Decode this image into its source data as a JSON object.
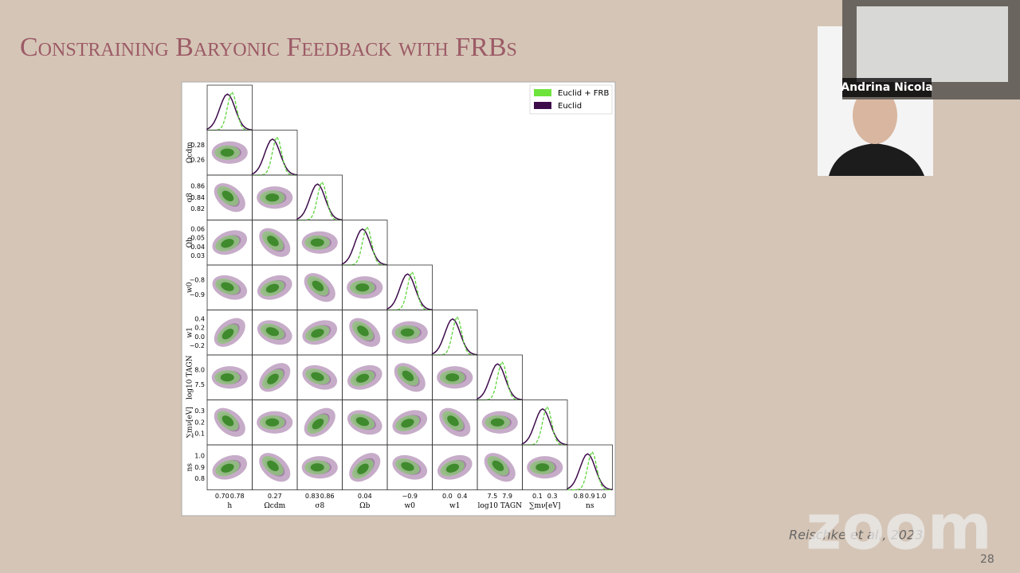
{
  "slide": {
    "title": "Constraining Baryonic Feedback with FRBs",
    "citation": "Reischke et al., 2023",
    "page": "28"
  },
  "figure": {
    "legend": [
      "Euclid + FRB",
      "Euclid"
    ],
    "columns": [
      {
        "label": "h",
        "ticks": [
          "0.70",
          "0.78"
        ]
      },
      {
        "label": "Ωcdm",
        "ticks": [
          "0.27"
        ]
      },
      {
        "label": "σ8",
        "ticks": [
          "0.83",
          "0.86"
        ]
      },
      {
        "label": "Ωb",
        "ticks": [
          "0.04"
        ]
      },
      {
        "label": "w0",
        "ticks": [
          "−0.9"
        ]
      },
      {
        "label": "w1",
        "ticks": [
          "0.0",
          "0.4"
        ]
      },
      {
        "label": "log10 TAGN",
        "ticks": [
          "7.5",
          "7.9"
        ]
      },
      {
        "label": "∑mν[eV]",
        "ticks": [
          "0.1",
          "0.3"
        ]
      },
      {
        "label": "ns",
        "ticks": [
          "0.8",
          "0.9",
          "1.0"
        ]
      }
    ],
    "rows": [
      {
        "label": "Ωcdm",
        "ticks": [
          "0.28",
          "0.26"
        ]
      },
      {
        "label": "σ8",
        "ticks": [
          "0.86",
          "0.84",
          "0.82"
        ]
      },
      {
        "label": "Ωb",
        "ticks": [
          "0.06",
          "0.05",
          "0.04",
          "0.03"
        ]
      },
      {
        "label": "w0",
        "ticks": [
          "−0.8",
          "−0.9"
        ]
      },
      {
        "label": "w1",
        "ticks": [
          "0.4",
          "0.2",
          "0.0",
          "−0.2"
        ]
      },
      {
        "label": "log10 TAGN",
        "ticks": [
          "8.0",
          "7.5"
        ]
      },
      {
        "label": "∑mν[eV]",
        "ticks": [
          "0.3",
          "0.2",
          "0.1"
        ]
      },
      {
        "label": "ns",
        "ticks": [
          "1.0",
          "0.9",
          "0.8"
        ]
      }
    ]
  },
  "video": {
    "speaker": "Andrina Nicola",
    "watermark": "zoom"
  }
}
